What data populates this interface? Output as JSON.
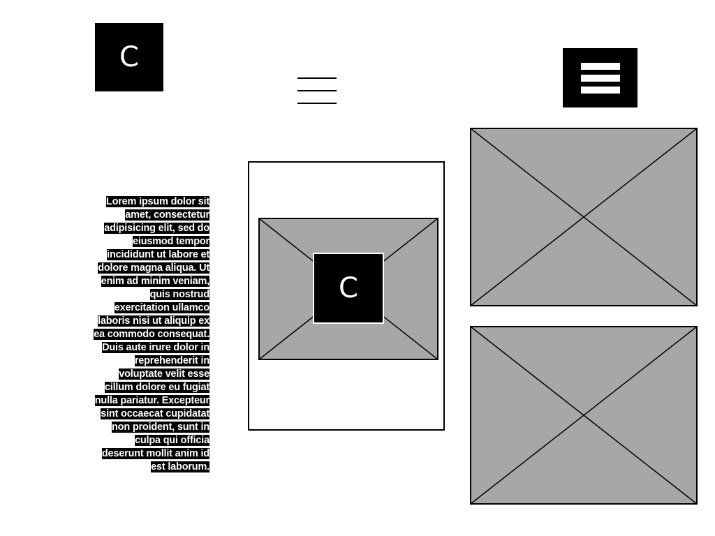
{
  "header": {
    "logo_letter": "C",
    "thin_menu_icon": "hamburger-thin-icon",
    "menu_button_icon": "hamburger-bold-icon"
  },
  "text_block": {
    "body": "Lorem ipsum dolor sit amet, consectetur adipisicing elit, sed do eiusmod tempor incididunt ut labore et dolore magna aliqua. Ut enim ad minim veniam, quis nostrud exercitation ullamco laboris nisi ut aliquip ex ea commodo consequat. Duis aute irure dolor in reprehenderit in voluptate velit esse cillum dolore eu fugiat nulla pariatur. Excepteur sint occaecat cupidatat non proident, sunt in culpa qui officia deserunt mollit anim id est laborum."
  },
  "card": {
    "logo_letter": "C",
    "image_icon": "image-placeholder-icon"
  },
  "gallery": {
    "top_image_icon": "image-placeholder-icon",
    "bottom_image_icon": "image-placeholder-icon"
  },
  "colors": {
    "placeholder_fill": "#a6a8a7",
    "ink": "#000000",
    "background": "#ffffff"
  }
}
